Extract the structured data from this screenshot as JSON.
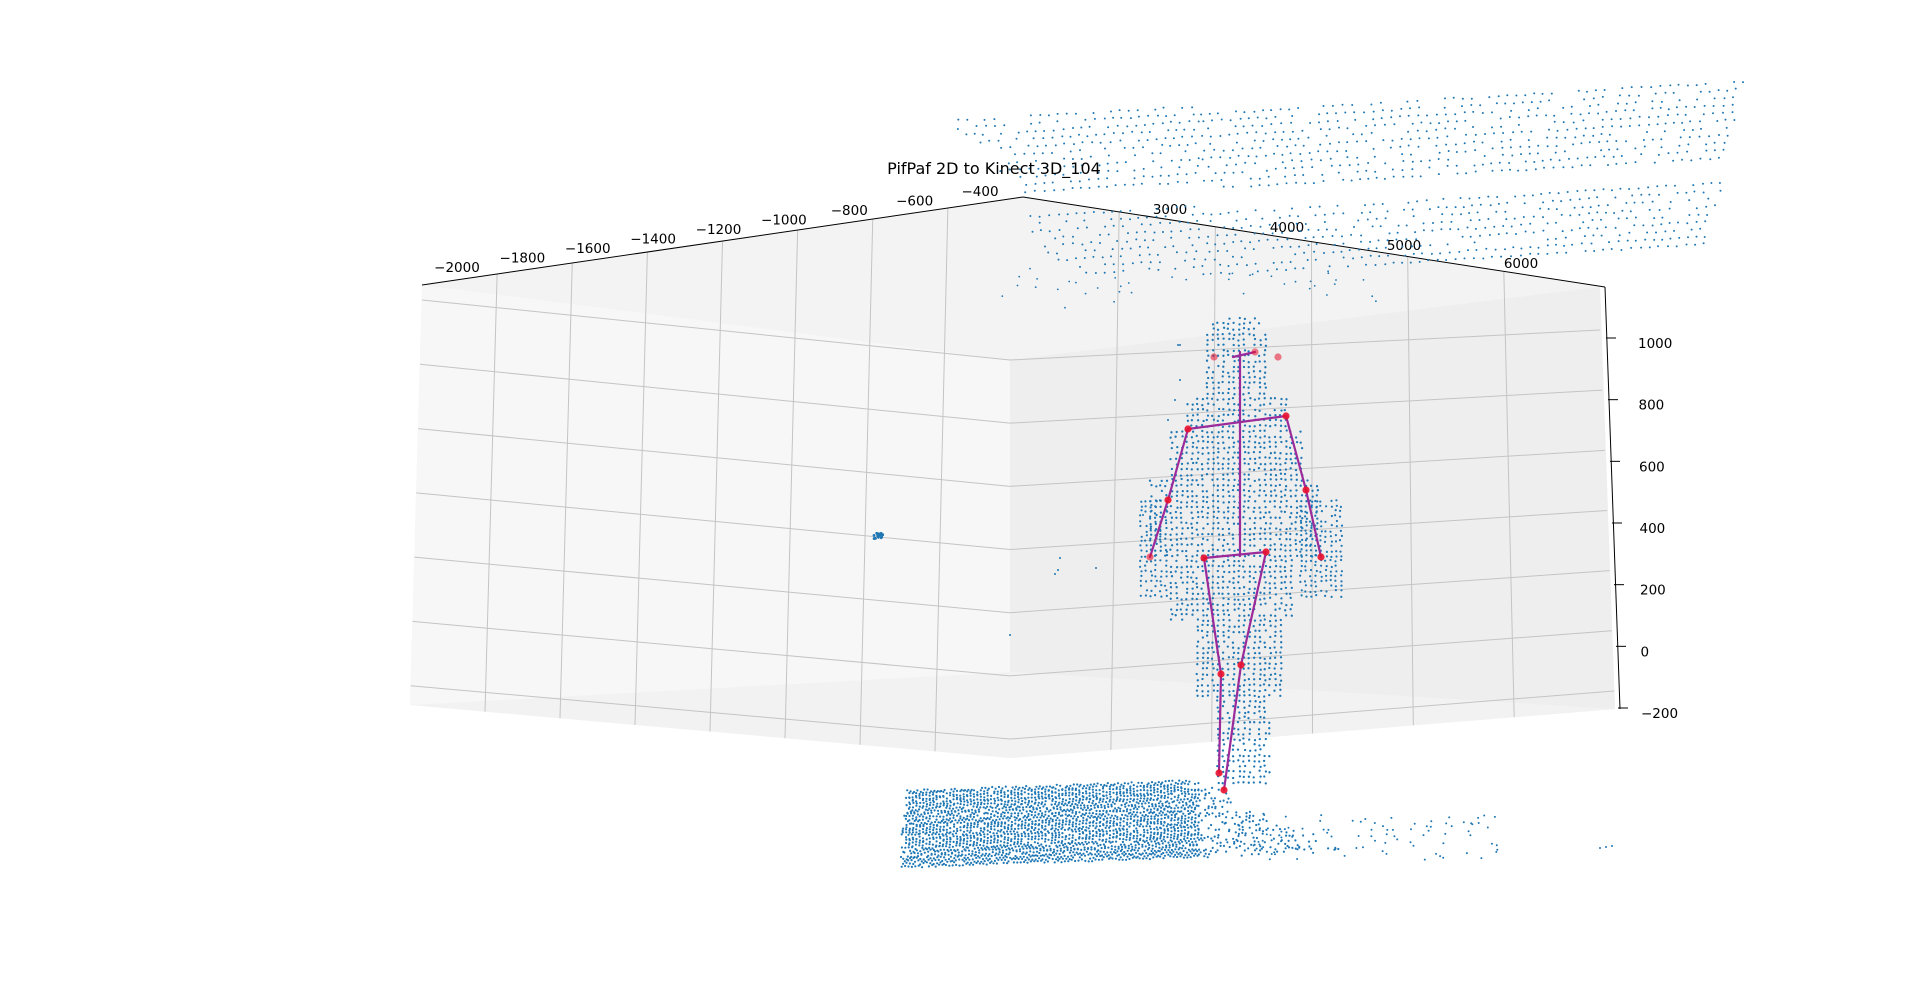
{
  "chart_data": {
    "type": "scatter",
    "projection": "3d",
    "title": "PifPaf 2D to Kinect 3D_104",
    "xlabel": "",
    "ylabel": "",
    "zlabel": "",
    "x_ticks": [
      "−2000",
      "−1800",
      "−1600",
      "−1400",
      "−1200",
      "−1000",
      "−800",
      "−600",
      "−400"
    ],
    "y_ticks": [
      "3000",
      "4000",
      "5000",
      "6000"
    ],
    "z_ticks": [
      "1000",
      "800",
      "600",
      "400",
      "200",
      "0",
      "−200"
    ],
    "xlim": [
      -2050,
      -400
    ],
    "ylim": [
      2600,
      6300
    ],
    "zlim": [
      -200,
      1050
    ],
    "grid": true,
    "legend": "none",
    "series": [
      {
        "kind": "point-cloud",
        "color": "#1f77b4"
      },
      {
        "kind": "keypoints",
        "color": "#e8112d"
      },
      {
        "kind": "skeleton",
        "color": "#9b2a9a"
      }
    ]
  }
}
